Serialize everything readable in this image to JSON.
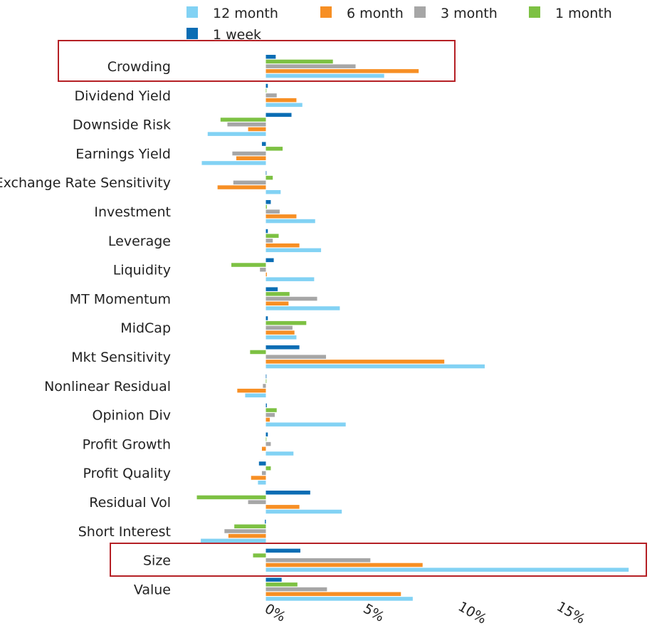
{
  "chart_data": {
    "type": "bar",
    "orientation": "horizontal",
    "title": "",
    "xlabel": "",
    "ylabel": "",
    "xlim": [
      -3.5,
      18.5
    ],
    "x_ticks": [
      0,
      5,
      10,
      15
    ],
    "x_tick_labels": [
      "0%",
      "5%",
      "10%",
      "15%"
    ],
    "legend_position": "top",
    "categories": [
      "Crowding",
      "Dividend Yield",
      "Downside Risk",
      "Earnings Yield",
      "Exchange Rate Sensitivity",
      "Investment",
      "Leverage",
      "Liquidity",
      "MT Momentum",
      "MidCap",
      "Mkt Sensitivity",
      "Nonlinear Residual",
      "Opinion Div",
      "Profit Growth",
      "Profit Quality",
      "Residual Vol",
      "Short Interest",
      "Size",
      "Value"
    ],
    "series": [
      {
        "name": "1 week",
        "color": "#0a6db4",
        "values": [
          0.5,
          0.1,
          1.3,
          -0.2,
          0.0,
          0.25,
          0.1,
          0.4,
          0.6,
          0.1,
          1.7,
          0.0,
          0.05,
          0.1,
          -0.35,
          2.25,
          -0.05,
          1.75,
          0.8
        ]
      },
      {
        "name": "1 month",
        "color": "#7dc143",
        "values": [
          3.4,
          0.0,
          -2.3,
          0.85,
          0.35,
          0.05,
          0.65,
          -1.75,
          1.2,
          2.05,
          -0.8,
          0.0,
          0.55,
          0.0,
          0.25,
          -3.5,
          -1.6,
          -0.65,
          1.6
        ]
      },
      {
        "name": "3 month",
        "color": "#a6a6a6",
        "values": [
          4.55,
          0.55,
          -1.95,
          -1.7,
          -1.65,
          0.7,
          0.35,
          -0.3,
          2.6,
          1.35,
          3.05,
          -0.15,
          0.45,
          0.25,
          -0.2,
          -0.9,
          -2.1,
          5.3,
          3.1
        ]
      },
      {
        "name": "6 month",
        "color": "#f78f24",
        "values": [
          7.75,
          1.55,
          -0.9,
          -1.5,
          -2.45,
          1.55,
          1.7,
          0.05,
          1.15,
          1.45,
          9.05,
          -1.45,
          0.2,
          -0.2,
          -0.75,
          1.7,
          -1.9,
          7.95,
          6.85
        ]
      },
      {
        "name": "12 month",
        "color": "#82d2f4",
        "values": [
          6.0,
          1.85,
          -2.95,
          -3.25,
          0.75,
          2.5,
          2.8,
          2.45,
          3.75,
          1.55,
          11.1,
          -1.05,
          4.05,
          1.4,
          -0.4,
          3.85,
          -3.3,
          18.4,
          7.45
        ]
      }
    ],
    "legend": [
      "12 month",
      "6 month",
      "3 month",
      "1 month",
      "1 week"
    ],
    "highlighted_categories": [
      "Crowding",
      "Size"
    ],
    "highlight_color": "#b52025"
  }
}
